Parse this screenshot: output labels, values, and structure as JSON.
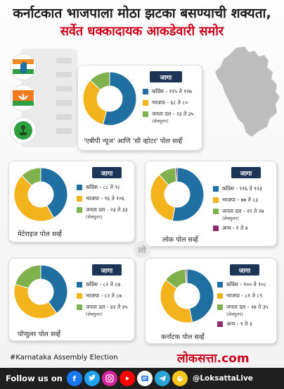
{
  "headline": {
    "line1": "कर्नाटकात भाजपाला मोठा झटका बसण्याची शक्यता,",
    "line2": "सर्वेत धक्कादायक आकडेवारी समोर"
  },
  "colors": {
    "congress": "#1f6fa1",
    "bjp": "#f2b31d",
    "jds": "#7fb24d",
    "others": "#8b2d6e",
    "badge": "#1d3557",
    "accent": "#d0021b"
  },
  "party_logos": [
    "congress-hand-symbol",
    "bjp-lotus-symbol",
    "jds-farmer-symbol"
  ],
  "jaga_label": "जागा",
  "jds_sub": "(सेक्युलर)",
  "polls": [
    {
      "title": "'एबीपी न्यूज' आणि 'सी व्होटर' पोल सर्व्हे",
      "legend": [
        {
          "text": "काँग्रेस - ११५ ते १२७"
        },
        {
          "text": "भाजपा - ६८ ते ८०"
        },
        {
          "text": "जनता दल - २३ ते ३५"
        }
      ]
    },
    {
      "title": "मेटेराइज पोल सर्व्हे",
      "legend": [
        {
          "text": "काँग्रेस - ८८ ते ९८"
        },
        {
          "text": "भाजपा - ९६ ते १०६"
        },
        {
          "text": "जनता दल - २३ ते ३३"
        }
      ]
    },
    {
      "title": "लोक पोल सर्व्हे",
      "legend": [
        {
          "text": "काँग्रेस - ११६ ते १२३"
        },
        {
          "text": "भाजपा - ७७ ते ८३"
        },
        {
          "text": "जनता दल - २१ ते २७"
        },
        {
          "text": "अन्य - १ ते ४"
        }
      ]
    },
    {
      "title": "पॉप्युलर पोल सर्व्हे",
      "legend": [
        {
          "text": "काँग्रेस - ८२ ते ८७"
        },
        {
          "text": "भाजपा - ८२ ते ८७"
        },
        {
          "text": "जनता दल - ४२ ते ४५"
        }
      ]
    },
    {
      "title": "कर्नाटक पोल सर्व्हे",
      "legend": [
        {
          "text": "काँग्रेस - १०० ते १०८"
        },
        {
          "text": "भाजपा - ८१ ते ८९"
        },
        {
          "text": "जनता दल - २७ ते ३५"
        },
        {
          "text": "अन्य - १ ते ३"
        }
      ]
    }
  ],
  "chart_values": [
    [
      121,
      74,
      29
    ],
    [
      93,
      101,
      28
    ],
    [
      119.5,
      80,
      24,
      2.5
    ],
    [
      84.5,
      84.5,
      43.5
    ],
    [
      104,
      85,
      31,
      2
    ]
  ],
  "hashtag": "#Karnataka Assembly Election",
  "brand": {
    "name": "लोकसत्ता",
    "suffix": ".com"
  },
  "footer": {
    "follow": "Follow us on",
    "icons": [
      "facebook-icon",
      "twitter-icon",
      "instagram-icon",
      "youtube-icon",
      "google-news-icon",
      "telegram-icon",
      "koo-icon"
    ],
    "handle": "@LoksattaLive"
  }
}
